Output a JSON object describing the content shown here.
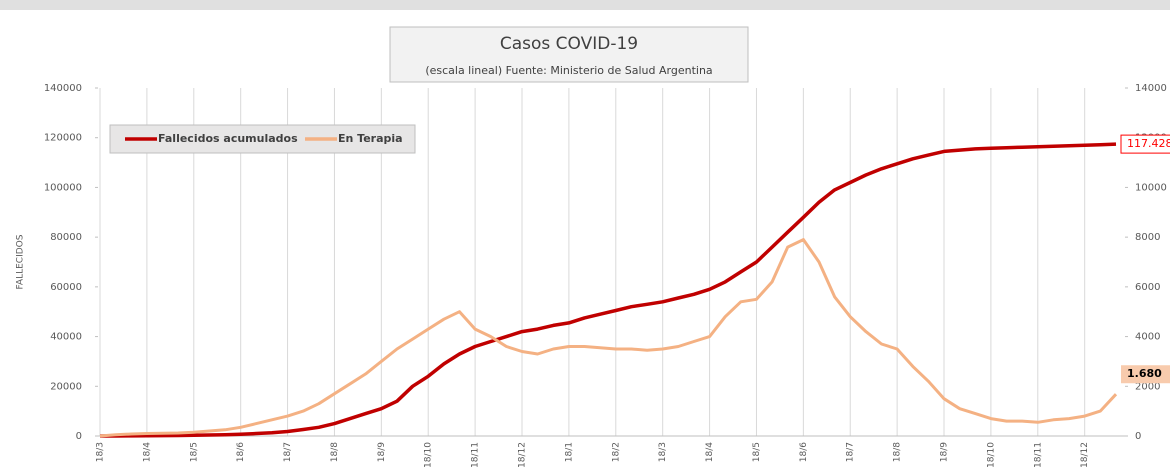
{
  "chart_data": {
    "type": "line",
    "title": "Casos COVID-19",
    "subtitle": "(escala lineal) Fuente: Ministerio de Salud Argentina",
    "ylabel": "FALLECIDOS",
    "categories": [
      "18/3",
      null,
      null,
      "18/4",
      null,
      null,
      "18/5",
      null,
      null,
      "18/6",
      null,
      null,
      "18/7",
      null,
      null,
      "18/8",
      null,
      null,
      "18/9",
      null,
      null,
      "18/10",
      null,
      null,
      "18/11",
      null,
      null,
      "18/12",
      null,
      null,
      "18/1",
      null,
      null,
      "18/2",
      null,
      null,
      "18/3",
      null,
      null,
      "18/4",
      null,
      null,
      "18/5",
      null,
      null,
      "18/6",
      null,
      null,
      "18/7",
      null,
      null,
      "18/8",
      null,
      null,
      "18/9",
      null,
      null,
      "18/10",
      null,
      null,
      "18/11",
      null,
      null,
      "18/12",
      null,
      null
    ],
    "series": [
      {
        "name": "Fallecidos acumulados",
        "color": "#c00000",
        "axis": "y",
        "values": [
          0,
          20,
          50,
          100,
          150,
          220,
          300,
          400,
          500,
          700,
          1000,
          1300,
          1800,
          2600,
          3500,
          5000,
          7000,
          9000,
          11000,
          14000,
          20000,
          24000,
          29000,
          33000,
          36000,
          38000,
          40000,
          42000,
          43000,
          44500,
          45500,
          47500,
          49000,
          50500,
          52000,
          53000,
          54000,
          55500,
          57000,
          59000,
          62000,
          66000,
          70000,
          76000,
          82000,
          88000,
          94000,
          99000,
          102000,
          105000,
          107500,
          109500,
          111500,
          113000,
          114500,
          115000,
          115500,
          115800,
          116000,
          116200,
          116400,
          116600,
          116800,
          117000,
          117200,
          117428
        ],
        "value_labels": [
          null,
          null,
          null,
          null,
          null,
          null,
          null,
          null,
          null,
          null,
          null,
          null,
          null,
          null,
          null,
          null,
          null,
          null,
          null,
          null,
          null,
          null,
          null,
          null,
          null,
          null,
          null,
          null,
          null,
          null,
          null,
          null,
          null,
          null,
          null,
          null,
          null,
          null,
          null,
          null,
          null,
          null,
          null,
          null,
          null,
          null,
          null,
          null,
          null,
          null,
          null,
          null,
          null,
          null,
          null,
          null,
          null,
          null,
          null,
          null,
          null,
          null,
          null,
          null,
          null,
          "117.428"
        ]
      },
      {
        "name": "En Terapia",
        "color": "#f4b183",
        "axis": "y2",
        "values": [
          0,
          50,
          80,
          100,
          110,
          120,
          150,
          200,
          250,
          350,
          500,
          650,
          800,
          1000,
          1300,
          1700,
          2100,
          2500,
          3000,
          3500,
          3900,
          4300,
          4700,
          5000,
          4300,
          4000,
          3600,
          3400,
          3300,
          3500,
          3600,
          3600,
          3550,
          3500,
          3500,
          3450,
          3500,
          3600,
          3800,
          4000,
          4800,
          5400,
          5500,
          6200,
          7600,
          7900,
          7000,
          5600,
          4800,
          4200,
          3700,
          3500,
          2800,
          2200,
          1500,
          1100,
          900,
          700,
          600,
          600,
          550,
          650,
          700,
          800,
          1000,
          1680
        ],
        "value_labels": [
          null,
          null,
          null,
          null,
          null,
          null,
          null,
          null,
          null,
          null,
          null,
          null,
          null,
          null,
          null,
          null,
          null,
          null,
          null,
          null,
          null,
          null,
          null,
          null,
          null,
          null,
          null,
          null,
          null,
          null,
          null,
          null,
          null,
          null,
          null,
          null,
          null,
          null,
          null,
          null,
          null,
          null,
          null,
          null,
          null,
          null,
          null,
          null,
          null,
          null,
          null,
          null,
          null,
          null,
          null,
          null,
          null,
          null,
          null,
          null,
          null,
          null,
          null,
          null,
          null,
          "1.680"
        ]
      }
    ],
    "ylim": [
      0,
      140000
    ],
    "yticks": [
      0,
      20000,
      40000,
      60000,
      80000,
      100000,
      120000,
      140000
    ],
    "y2lim": [
      0,
      14000
    ],
    "y2ticks": [
      0,
      2000,
      4000,
      6000,
      8000,
      10000,
      12000,
      14000
    ],
    "grid": true,
    "legend": "upper left"
  }
}
